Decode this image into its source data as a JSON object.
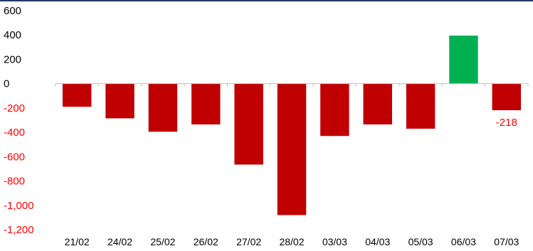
{
  "chart_data": {
    "type": "bar",
    "title": "",
    "xlabel": "",
    "ylabel": "",
    "categories": [
      "21/02",
      "24/02",
      "25/02",
      "26/02",
      "27/02",
      "28/02",
      "03/03",
      "04/03",
      "05/03",
      "06/03",
      "07/03"
    ],
    "values": [
      -190,
      -285,
      -395,
      -335,
      -665,
      -1080,
      -430,
      -335,
      -370,
      395,
      -218
    ],
    "ylim": [
      -1200,
      600
    ],
    "yticks": [
      600,
      400,
      200,
      0,
      -200,
      -400,
      -600,
      -800,
      -1000,
      -1200
    ],
    "ytick_labels": [
      "600",
      "400",
      "200",
      "0",
      "-200",
      "-400",
      "-600",
      "-800",
      "-1,000",
      "-1,200"
    ],
    "data_labels": [
      {
        "category": "07/03",
        "text": "-218"
      }
    ],
    "colors": {
      "negative": "#c00000",
      "positive": "#00b050",
      "positive_tick_text": "#000000",
      "negative_tick_text": "#ff0000",
      "top_border": "#1f3864",
      "axis": "#bfbfbf"
    },
    "grid": false,
    "legend": "none"
  }
}
